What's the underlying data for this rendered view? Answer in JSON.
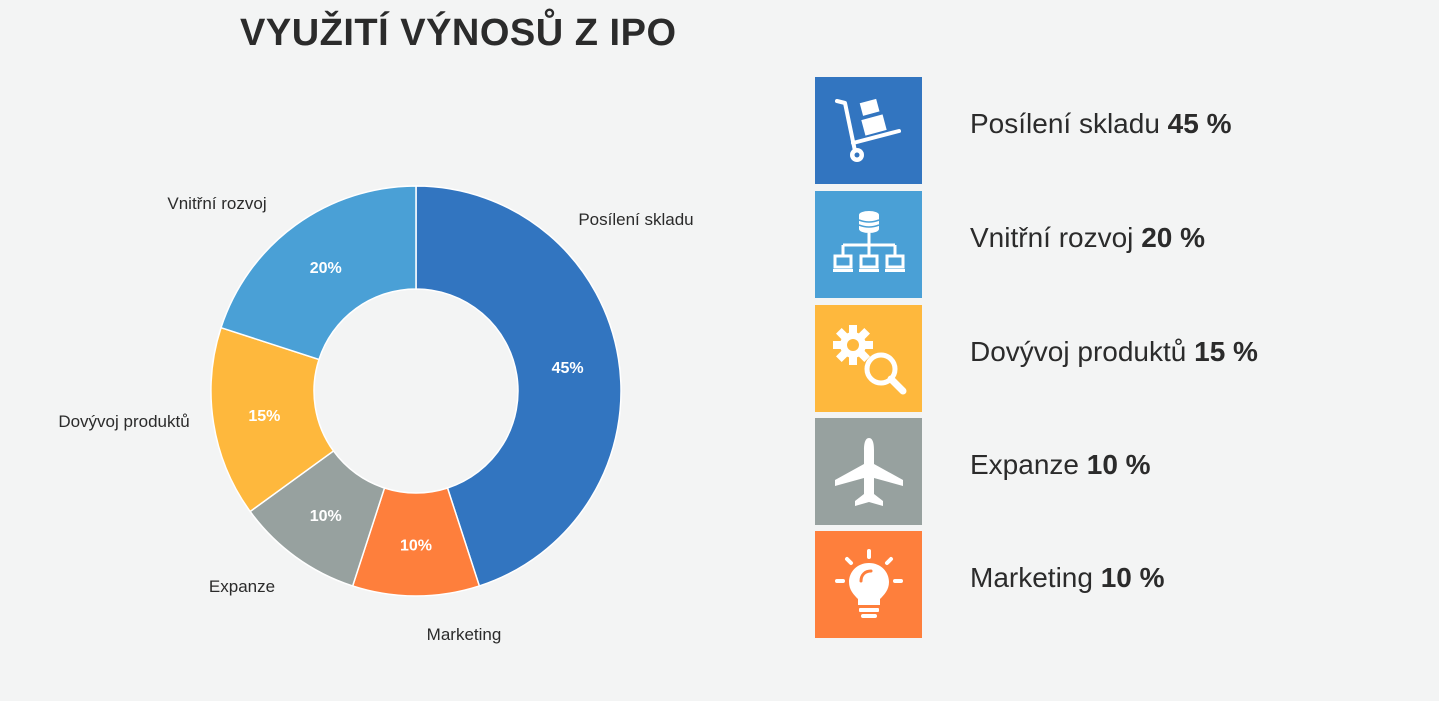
{
  "title": "VYUŽITÍ VÝNOSŮ Z IPO",
  "chart_data": {
    "type": "pie",
    "variant": "donut",
    "title": "VYUŽITÍ VÝNOSŮ Z IPO",
    "categories": [
      "Posílení skladu",
      "Marketing",
      "Expanze",
      "Dovývoj produktů",
      "Vnitřní rozvoj"
    ],
    "values": [
      45,
      10,
      10,
      15,
      20
    ],
    "value_labels": [
      "45%",
      "10%",
      "10%",
      "15%",
      "20%"
    ],
    "colors": [
      "#3275c0",
      "#fe7f3c",
      "#97a19f",
      "#feb83d",
      "#4aa0d6"
    ]
  },
  "legend": [
    {
      "label": "Posílení skladu",
      "value": "45 %",
      "color": "#3275c0",
      "icon": "hand-truck-icon"
    },
    {
      "label": "Vnitřní rozvoj",
      "value": "20 %",
      "color": "#4aa0d6",
      "icon": "network-database-icon"
    },
    {
      "label": "Dovývoj produktů",
      "value": "15 %",
      "color": "#feb83d",
      "icon": "gear-search-icon"
    },
    {
      "label": "Expanze",
      "value": "10 %",
      "color": "#97a19f",
      "icon": "airplane-icon"
    },
    {
      "label": "Marketing",
      "value": "10 %",
      "color": "#fe7f3c",
      "icon": "lightbulb-icon"
    }
  ]
}
